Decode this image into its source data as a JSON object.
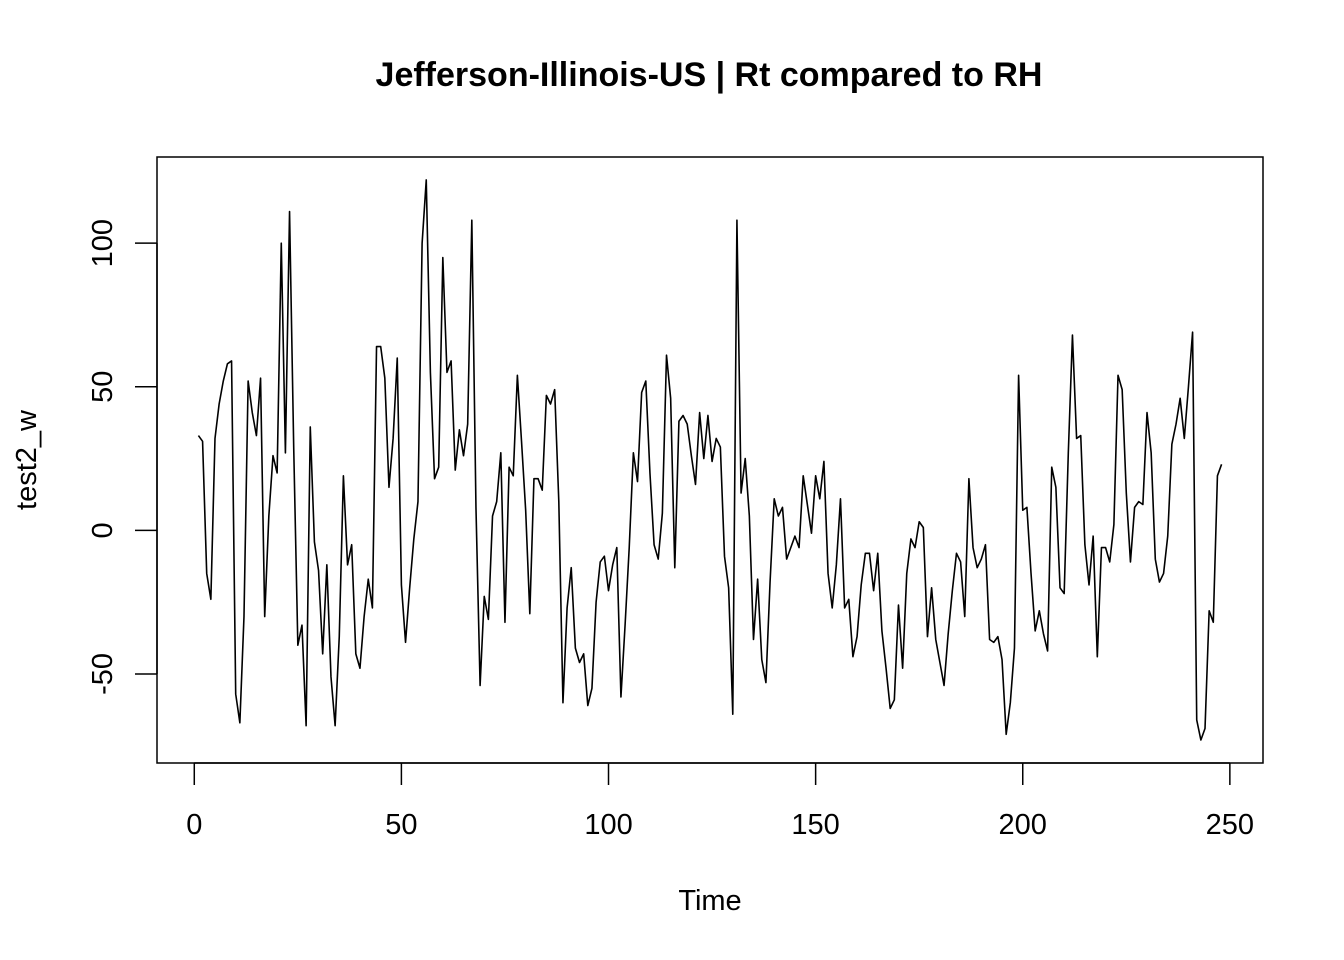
{
  "chart_data": {
    "type": "line",
    "title": "Jefferson-Illinois-US | Rt compared to RH",
    "xlabel": "Time",
    "ylabel": "test2_w",
    "xlim": [
      -9,
      258
    ],
    "ylim": [
      -81,
      130
    ],
    "xticks": [
      0,
      50,
      100,
      150,
      200,
      250
    ],
    "yticks": [
      -50,
      0,
      50,
      100
    ],
    "grid": false,
    "line_color": "#000000",
    "series": [
      {
        "x_start": 1,
        "values": [
          33,
          31,
          -15,
          -24,
          32,
          44,
          52,
          58,
          59,
          -57,
          -67,
          -30,
          52,
          41,
          33,
          53,
          -30,
          5,
          26,
          20,
          100,
          27,
          111,
          29,
          -40,
          -33,
          -68,
          36,
          -4,
          -14,
          -43,
          -12,
          -51,
          -68,
          -37,
          19,
          -12,
          -5,
          -43,
          -48,
          -30,
          -17,
          -27,
          64,
          64,
          53,
          15,
          32,
          60,
          -19,
          -39,
          -20,
          -3,
          10,
          100,
          122,
          55,
          18,
          22,
          95,
          55,
          59,
          21,
          35,
          26,
          37,
          108,
          8,
          -54,
          -23,
          -31,
          5,
          10,
          27,
          -32,
          22,
          19,
          54,
          31,
          7,
          -29,
          18,
          18,
          14,
          47,
          44,
          49,
          10,
          -60,
          -27,
          -13,
          -41,
          -46,
          -43,
          -61,
          -55,
          -25,
          -11,
          -9,
          -21,
          -12,
          -6,
          -58,
          -33,
          -6,
          27,
          17,
          48,
          52,
          20,
          -5,
          -10,
          6,
          61,
          46,
          -13,
          38,
          40,
          37,
          26,
          16,
          41,
          25,
          40,
          24,
          32,
          29,
          -9,
          -20,
          -64,
          108,
          13,
          25,
          5,
          -38,
          -17,
          -45,
          -53,
          -18,
          11,
          5,
          8,
          -10,
          -6,
          -2,
          -6,
          19,
          9,
          -1,
          19,
          11,
          24,
          -15,
          -27,
          -12,
          11,
          -27,
          -24,
          -44,
          -37,
          -19,
          -8,
          -8,
          -21,
          -8,
          -35,
          -48,
          -62,
          -59,
          -26,
          -48,
          -15,
          -3,
          -6,
          3,
          1,
          -37,
          -20,
          -38,
          -46,
          -54,
          -36,
          -21,
          -8,
          -11,
          -30,
          18,
          -6,
          -13,
          -10,
          -5,
          -38,
          -39,
          -37,
          -45,
          -71,
          -60,
          -41,
          54,
          7,
          8,
          -15,
          -35,
          -28,
          -36,
          -42,
          22,
          15,
          -20,
          -22,
          27,
          68,
          32,
          33,
          -5,
          -19,
          -2,
          -44,
          -6,
          -6,
          -11,
          2,
          54,
          49,
          13,
          -11,
          8,
          10,
          9,
          41,
          27,
          -10,
          -18,
          -15,
          -2,
          30,
          37,
          46,
          32,
          50,
          69,
          -66,
          -73,
          -69,
          -28,
          -32,
          19,
          23
        ]
      }
    ]
  }
}
